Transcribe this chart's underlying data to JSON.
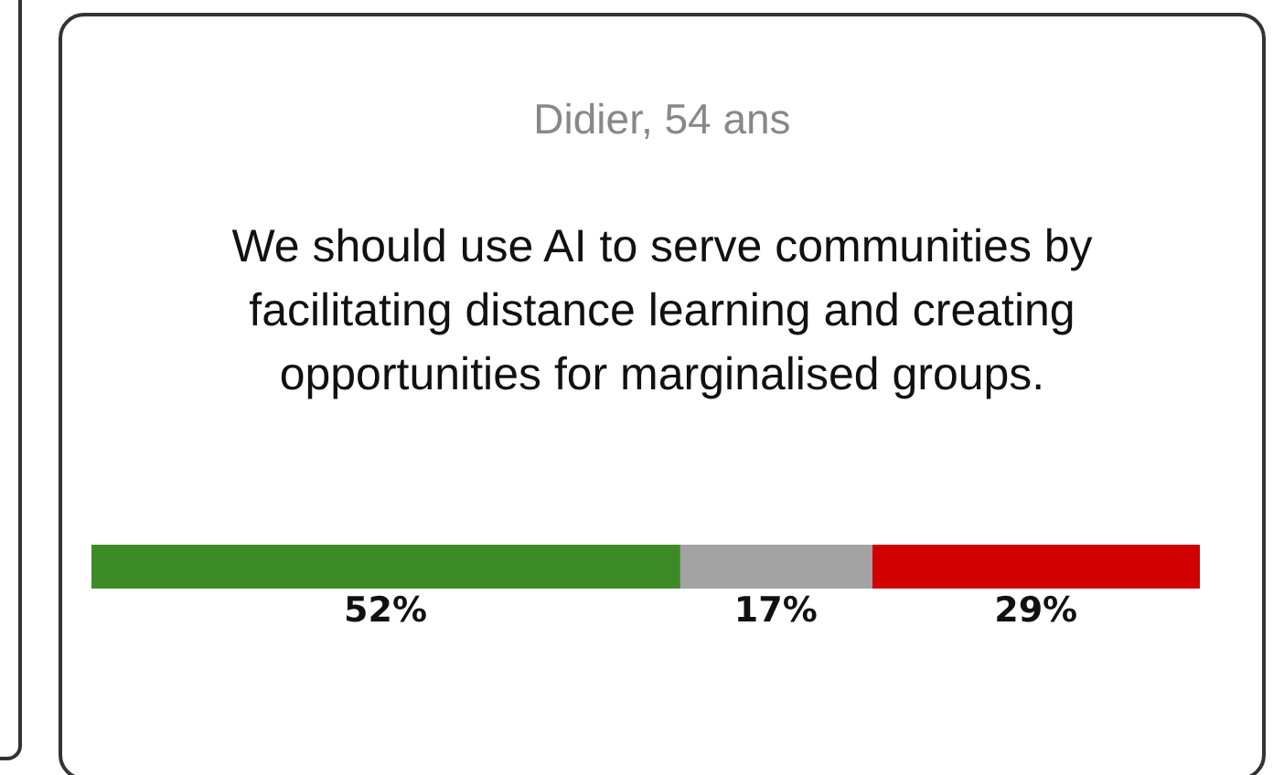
{
  "chart_data": {
    "type": "bar",
    "title": "Didier, 54 ans",
    "subtitle": "We should use AI to serve communities by facilitating distance learning and creating opportunities for marginalised groups.",
    "orientation": "horizontal",
    "stacked": true,
    "categories": [
      null
    ],
    "legend": false,
    "series": [
      {
        "color": "#3d8b27",
        "values": [
          52
        ],
        "value_labels": [
          "52%"
        ]
      },
      {
        "color": "#a3a3a3",
        "values": [
          17
        ],
        "value_labels": [
          "17%"
        ]
      },
      {
        "color": "#d20000",
        "values": [
          29
        ],
        "value_labels": [
          "29%"
        ]
      }
    ]
  }
}
